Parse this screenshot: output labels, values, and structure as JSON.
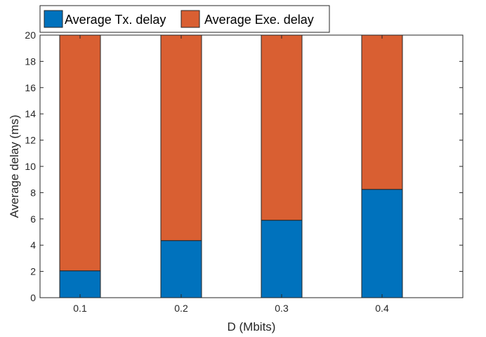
{
  "chart_data": {
    "type": "bar",
    "stacked": true,
    "title": "",
    "xlabel": "D (Mbits)",
    "ylabel": "Average delay (ms)",
    "categories": [
      "0.1",
      "0.2",
      "0.3",
      "0.4"
    ],
    "series": [
      {
        "name": "Average Tx. delay",
        "color": "#0072BD",
        "values": [
          2.05,
          4.35,
          5.9,
          8.25
        ]
      },
      {
        "name": "Average Exe. delay",
        "color": "#D95F32",
        "values": [
          17.95,
          15.65,
          14.1,
          11.75
        ]
      }
    ],
    "ylim": [
      0,
      20
    ],
    "yticks": [
      0,
      2,
      4,
      6,
      8,
      10,
      12,
      14,
      16,
      18,
      20
    ],
    "legend_position": "top-left",
    "grid": false
  }
}
